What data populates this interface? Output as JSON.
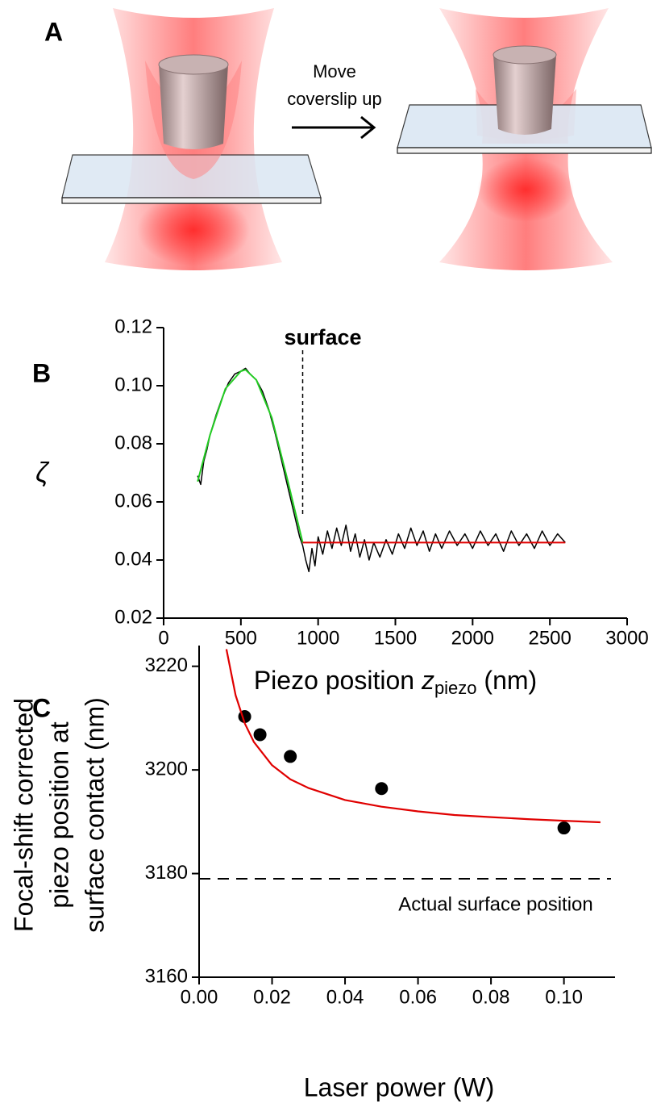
{
  "diagram": {
    "label": "A",
    "arrow_text": [
      "Move",
      "coverslip up"
    ]
  },
  "chart_data": [
    {
      "type": "line",
      "label": "B",
      "ylabel": "ζ",
      "xlabel_parts": [
        "Piezo position ",
        "z",
        "piezo",
        " (nm)"
      ],
      "annotation": "surface",
      "annotation_x": 900,
      "xlim": [
        0,
        3000
      ],
      "xticks": [
        0,
        500,
        1000,
        1500,
        2000,
        2500,
        3000
      ],
      "ylim": [
        0.02,
        0.12
      ],
      "yticks": [
        0.02,
        0.04,
        0.06,
        0.08,
        {
          "value": 0.1,
          "label": "0.10"
        },
        0.12
      ],
      "series": [
        {
          "color": "#000000",
          "x": [
            220,
            240,
            260,
            280,
            300,
            340,
            380,
            420,
            460,
            500,
            530,
            560,
            600,
            640,
            680,
            720,
            760,
            800,
            840,
            880,
            900,
            920,
            940,
            960,
            980,
            1000,
            1030,
            1060,
            1090,
            1120,
            1150,
            1180,
            1210,
            1240,
            1270,
            1300,
            1330,
            1360,
            1400,
            1440,
            1480,
            1520,
            1560,
            1600,
            1640,
            1680,
            1720,
            1760,
            1800,
            1850,
            1900,
            1950,
            2000,
            2050,
            2100,
            2150,
            2200,
            2250,
            2300,
            2350,
            2400,
            2450,
            2500,
            2550,
            2600
          ],
          "values": [
            0.069,
            0.066,
            0.074,
            0.078,
            0.083,
            0.09,
            0.096,
            0.101,
            0.104,
            0.105,
            0.106,
            0.104,
            0.102,
            0.098,
            0.092,
            0.084,
            0.075,
            0.066,
            0.057,
            0.048,
            0.045,
            0.04,
            0.036,
            0.044,
            0.038,
            0.048,
            0.042,
            0.05,
            0.044,
            0.051,
            0.045,
            0.052,
            0.043,
            0.049,
            0.041,
            0.047,
            0.04,
            0.046,
            0.041,
            0.047,
            0.042,
            0.049,
            0.044,
            0.051,
            0.045,
            0.05,
            0.043,
            0.049,
            0.044,
            0.05,
            0.045,
            0.049,
            0.044,
            0.05,
            0.045,
            0.049,
            0.043,
            0.05,
            0.045,
            0.049,
            0.044,
            0.05,
            0.045,
            0.049,
            0.046
          ]
        },
        {
          "color": "#22cc22",
          "x": [
            220,
            300,
            400,
            500,
            530,
            600,
            700,
            800,
            900
          ],
          "values": [
            0.067,
            0.083,
            0.099,
            0.105,
            0.1055,
            0.102,
            0.089,
            0.068,
            0.046
          ]
        },
        {
          "color": "#e00000",
          "x": [
            900,
            2600
          ],
          "values": [
            0.046,
            0.046
          ]
        }
      ]
    },
    {
      "type": "scatter",
      "label": "C",
      "ylabel_lines": [
        "Focal-shift corrected",
        "piezo position at",
        "surface contact (nm)"
      ],
      "xlabel": "Laser power (W)",
      "reference_line": 3179,
      "reference_label": "Actual surface position",
      "xlim": [
        0,
        0.114
      ],
      "xticks": [
        {
          "value": 0,
          "label": "0.00"
        },
        0.02,
        0.04,
        0.06,
        0.08,
        {
          "value": 0.1,
          "label": "0.10"
        }
      ],
      "ylim": [
        3160,
        3224
      ],
      "yticks": [
        3160,
        3180,
        3200,
        3220
      ],
      "series": [
        {
          "type": "scatter",
          "color": "#000000",
          "x": [
            0.0125,
            0.0167,
            0.025,
            0.05,
            0.1
          ],
          "values": [
            3210.3,
            3206.8,
            3202.6,
            3196.4,
            3188.8
          ]
        },
        {
          "type": "line",
          "color": "#e00000",
          "x": [
            0.0075,
            0.01,
            0.0125,
            0.015,
            0.02,
            0.025,
            0.03,
            0.04,
            0.05,
            0.06,
            0.07,
            0.08,
            0.09,
            0.1,
            0.11
          ],
          "values": [
            3223.3,
            3214.4,
            3209.0,
            3205.4,
            3200.9,
            3198.2,
            3196.5,
            3194.2,
            3192.9,
            3192.0,
            3191.3,
            3190.9,
            3190.5,
            3190.2,
            3189.9
          ]
        }
      ]
    }
  ]
}
